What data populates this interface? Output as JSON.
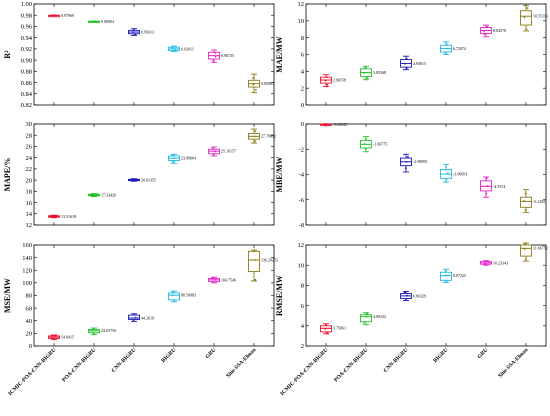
{
  "x_categories": [
    "ICMIC-POA-CNN-BIGRU",
    "POA-CNN-BIGRU",
    "CNN-BIGRU",
    "BIGRU",
    "GRU",
    "Sine-SSA-Elman"
  ],
  "colors": [
    "#e8112d",
    "#22c02a",
    "#1a1ab8",
    "#1fb8e6",
    "#e622c8",
    "#8b7a16"
  ],
  "chart_data": [
    {
      "type": "box",
      "ylabel": "R²",
      "ylim": [
        0.82,
        1.0
      ],
      "yticks": [
        "0.82",
        "0.84",
        "0.86",
        "0.88",
        "0.90",
        "0.92",
        "0.94",
        "0.96",
        "0.98",
        "1.00"
      ],
      "annotations": [
        "0.97969",
        "0.96904",
        "0.95013",
        "0.92011",
        "0.90735",
        "0.85863"
      ],
      "series": [
        {
          "median": 0.9797,
          "q1": 0.9795,
          "q3": 0.9799,
          "lower": 0.9792,
          "upper": 0.9801,
          "points": [
            0.9794,
            0.9797,
            0.98
          ]
        },
        {
          "median": 0.969,
          "q1": 0.9686,
          "q3": 0.9694,
          "lower": 0.9682,
          "upper": 0.9698,
          "points": [
            0.9687,
            0.969,
            0.9693
          ]
        },
        {
          "median": 0.95,
          "q1": 0.947,
          "q3": 0.953,
          "lower": 0.944,
          "upper": 0.956,
          "points": [
            0.946,
            0.95,
            0.954
          ]
        },
        {
          "median": 0.92,
          "q1": 0.917,
          "q3": 0.923,
          "lower": 0.915,
          "upper": 0.925,
          "points": [
            0.918,
            0.92,
            0.922
          ]
        },
        {
          "median": 0.908,
          "q1": 0.902,
          "q3": 0.914,
          "lower": 0.896,
          "upper": 0.918,
          "points": [
            0.899,
            0.906,
            0.913
          ]
        },
        {
          "median": 0.858,
          "q1": 0.852,
          "q3": 0.864,
          "lower": 0.842,
          "upper": 0.875,
          "points": [
            0.847,
            0.856,
            0.868
          ]
        }
      ]
    },
    {
      "type": "box",
      "ylabel": "MAE/MW",
      "ylim": [
        0,
        12
      ],
      "yticks": [
        "0",
        "2",
        "4",
        "6",
        "8",
        "10",
        "12"
      ],
      "annotations": [
        "2.96558",
        "3.85368",
        "4.93615",
        "6.72074",
        "8.84578",
        "10.55119"
      ],
      "series": [
        {
          "median": 2.97,
          "q1": 2.6,
          "q3": 3.3,
          "lower": 2.2,
          "upper": 3.6,
          "points": [
            2.4,
            2.9,
            3.3
          ]
        },
        {
          "median": 3.85,
          "q1": 3.4,
          "q3": 4.3,
          "lower": 3.0,
          "upper": 4.6,
          "points": [
            3.2,
            3.8,
            4.4
          ]
        },
        {
          "median": 4.94,
          "q1": 4.5,
          "q3": 5.4,
          "lower": 4.2,
          "upper": 5.8,
          "points": [
            4.4,
            4.9,
            5.5
          ]
        },
        {
          "median": 6.72,
          "q1": 6.3,
          "q3": 7.1,
          "lower": 6.0,
          "upper": 7.5,
          "points": [
            6.2,
            6.7,
            7.2
          ]
        },
        {
          "median": 8.85,
          "q1": 8.5,
          "q3": 9.2,
          "lower": 8.1,
          "upper": 9.5,
          "points": [
            8.4,
            8.8,
            9.3
          ]
        },
        {
          "median": 10.55,
          "q1": 9.5,
          "q3": 11.2,
          "lower": 8.8,
          "upper": 11.8,
          "points": [
            9.0,
            10.4,
            11.5
          ]
        }
      ]
    },
    {
      "type": "box",
      "ylabel": "MAPE/%",
      "ylim": [
        12,
        30
      ],
      "yticks": [
        "12",
        "14",
        "16",
        "18",
        "20",
        "22",
        "24",
        "26",
        "28",
        "30"
      ],
      "annotations": [
        "13.51618",
        "17.33426",
        "20.01355",
        "23.90604",
        "25.16157",
        "27.79662"
      ],
      "series": [
        {
          "median": 13.52,
          "q1": 13.4,
          "q3": 13.65,
          "lower": 13.3,
          "upper": 13.75,
          "points": [
            13.4,
            13.5,
            13.6
          ]
        },
        {
          "median": 17.33,
          "q1": 17.2,
          "q3": 17.5,
          "lower": 17.05,
          "upper": 17.6,
          "points": [
            17.2,
            17.3,
            17.5
          ]
        },
        {
          "median": 20.01,
          "q1": 19.9,
          "q3": 20.15,
          "lower": 19.8,
          "upper": 20.25,
          "points": [
            19.9,
            20.0,
            20.1
          ]
        },
        {
          "median": 23.91,
          "q1": 23.5,
          "q3": 24.3,
          "lower": 23.0,
          "upper": 24.6,
          "points": [
            23.3,
            23.9,
            24.4
          ]
        },
        {
          "median": 25.16,
          "q1": 24.7,
          "q3": 25.5,
          "lower": 24.3,
          "upper": 25.9,
          "points": [
            24.6,
            25.1,
            25.6
          ]
        },
        {
          "median": 27.8,
          "q1": 27.3,
          "q3": 28.3,
          "lower": 26.6,
          "upper": 29.1,
          "points": [
            26.9,
            27.8,
            28.7
          ]
        }
      ]
    },
    {
      "type": "box",
      "ylabel": "MBE/MW",
      "ylim": [
        -8,
        0
      ],
      "yticks": [
        "-8",
        "-6",
        "-4",
        "-2",
        "0"
      ],
      "annotations": [
        "-0.02625",
        "-1.60775",
        "-2.98995",
        "-3.96691",
        "-4.9374",
        "-6.1285"
      ],
      "series": [
        {
          "median": -0.03,
          "q1": -0.06,
          "q3": 0.0,
          "lower": -0.09,
          "upper": 0.02,
          "points": [
            -0.06,
            -0.03,
            0.0
          ]
        },
        {
          "median": -1.61,
          "q1": -1.9,
          "q3": -1.3,
          "lower": -2.2,
          "upper": -1.0,
          "points": [
            -2.0,
            -1.6,
            -1.2
          ]
        },
        {
          "median": -2.99,
          "q1": -3.3,
          "q3": -2.7,
          "lower": -3.8,
          "upper": -2.4,
          "points": [
            -3.5,
            -3.0,
            -2.6
          ]
        },
        {
          "median": -3.97,
          "q1": -4.3,
          "q3": -3.6,
          "lower": -4.6,
          "upper": -3.2,
          "points": [
            -4.4,
            -3.9,
            -3.4
          ]
        },
        {
          "median": -4.94,
          "q1": -5.3,
          "q3": -4.5,
          "lower": -5.8,
          "upper": -4.2,
          "points": [
            -5.5,
            -4.9,
            -4.3
          ]
        },
        {
          "median": -6.13,
          "q1": -6.6,
          "q3": -5.8,
          "lower": -7.0,
          "upper": -5.2,
          "points": [
            -6.8,
            -6.1,
            -5.5
          ]
        }
      ]
    },
    {
      "type": "box",
      "ylabel": "MSE/MW",
      "ylim": [
        0,
        160
      ],
      "yticks": [
        "0",
        "20",
        "40",
        "60",
        "80",
        "100",
        "120",
        "140",
        "160"
      ],
      "annotations": [
        "14.0415",
        "24.03756",
        "44.2619",
        "80.50983",
        "104.7546",
        "136.29253"
      ],
      "series": [
        {
          "median": 14.04,
          "q1": 12.0,
          "q3": 16.0,
          "lower": 10.0,
          "upper": 17.5,
          "points": [
            11.5,
            14.0,
            16.5
          ]
        },
        {
          "median": 24.04,
          "q1": 21.0,
          "q3": 26.0,
          "lower": 18.0,
          "upper": 28.5,
          "points": [
            20.0,
            24.0,
            27.0
          ]
        },
        {
          "median": 44.26,
          "q1": 42.0,
          "q3": 49.0,
          "lower": 39.0,
          "upper": 51.0,
          "points": [
            41.0,
            45.0,
            50.0
          ]
        },
        {
          "median": 80.51,
          "q1": 73.0,
          "q3": 84.0,
          "lower": 70.0,
          "upper": 87.0,
          "points": [
            72.0,
            80.0,
            85.0
          ]
        },
        {
          "median": 104.75,
          "q1": 102.0,
          "q3": 107.0,
          "lower": 100.0,
          "upper": 109.0,
          "points": [
            101.0,
            104.8,
            108.0
          ]
        },
        {
          "median": 136.29,
          "q1": 118.0,
          "q3": 150.0,
          "lower": 103.0,
          "upper": 152.0,
          "points": [
            105.0,
            136.0,
            150.0
          ]
        }
      ]
    },
    {
      "type": "box",
      "ylabel": "RMSE/MW",
      "ylim": [
        2,
        12
      ],
      "yticks": [
        "2",
        "4",
        "6",
        "8",
        "10",
        "12"
      ],
      "annotations": [
        "3.75061",
        "4.90322",
        "6.96329",
        "8.97225",
        "10.23343",
        "11.66752"
      ],
      "series": [
        {
          "median": 3.75,
          "q1": 3.4,
          "q3": 4.0,
          "lower": 3.2,
          "upper": 4.2,
          "points": [
            3.3,
            3.7,
            4.1
          ]
        },
        {
          "median": 4.9,
          "q1": 4.4,
          "q3": 5.1,
          "lower": 4.1,
          "upper": 5.3,
          "points": [
            4.3,
            4.9,
            5.2
          ]
        },
        {
          "median": 6.96,
          "q1": 6.7,
          "q3": 7.2,
          "lower": 6.5,
          "upper": 7.4,
          "points": [
            6.6,
            7.0,
            7.3
          ]
        },
        {
          "median": 8.97,
          "q1": 8.5,
          "q3": 9.3,
          "lower": 8.3,
          "upper": 9.6,
          "points": [
            8.4,
            9.0,
            9.4
          ]
        },
        {
          "median": 10.23,
          "q1": 10.1,
          "q3": 10.35,
          "lower": 10.0,
          "upper": 10.45,
          "points": [
            10.1,
            10.2,
            10.4
          ]
        },
        {
          "median": 11.67,
          "q1": 10.9,
          "q3": 12.0,
          "lower": 10.4,
          "upper": 12.2,
          "points": [
            10.6,
            11.6,
            12.1
          ]
        }
      ]
    }
  ]
}
